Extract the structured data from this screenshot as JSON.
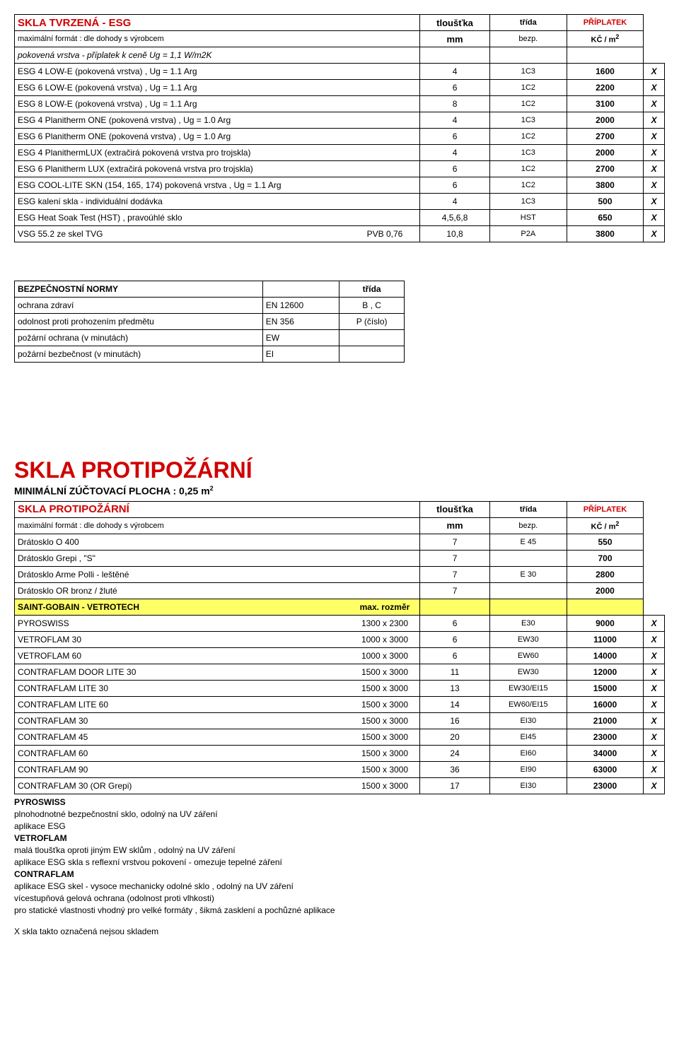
{
  "esg": {
    "title": "SKLA TVRZENÁ - ESG",
    "subtitle": "maximální formát :  dle dohody s výrobcem",
    "col_tl": "tloušťka",
    "col_mm": "mm",
    "col_trida": "třída",
    "col_bezp": "bezp.",
    "col_pripl": "PŘÍPLATEK",
    "col_kc": "KČ / m",
    "sup2": "2",
    "row_pokov": "pokovená vrstva - příplatek k ceně Ug = 1,1 W/m2K",
    "rows": [
      {
        "n": "ESG 4 LOW-E (pokovená vrstva) ,  Ug = 1.1 Arg",
        "mm": "4",
        "t": "1C3",
        "p": "1600",
        "x": "X"
      },
      {
        "n": "ESG 6 LOW-E (pokovená vrstva) ,  Ug = 1.1 Arg",
        "mm": "6",
        "t": "1C2",
        "p": "2200",
        "x": "X"
      },
      {
        "n": "ESG 8 LOW-E (pokovená vrstva) ,  Ug = 1.1 Arg",
        "mm": "8",
        "t": "1C2",
        "p": "3100",
        "x": "X"
      },
      {
        "n": "ESG 4 Planitherm ONE (pokovená vrstva) , Ug = 1.0 Arg",
        "mm": "4",
        "t": "1C3",
        "p": "2000",
        "x": "X"
      },
      {
        "n": "ESG 6 Planitherm ONE (pokovená vrstva) , Ug = 1.0 Arg",
        "mm": "6",
        "t": "1C2",
        "p": "2700",
        "x": "X"
      },
      {
        "n": "ESG 4 PlanithermLUX (extračirá pokovená vrstva pro trojskla)",
        "mm": "4",
        "t": "1C3",
        "p": "2000",
        "x": "X"
      },
      {
        "n": "ESG 6 Planitherm LUX (extračirá pokovená vrstva pro trojskla)",
        "mm": "6",
        "t": "1C2",
        "p": "2700",
        "x": "X"
      },
      {
        "n": "ESG COOL-LITE SKN (154, 165, 174) pokovená vrstva , Ug = 1.1 Arg",
        "mm": "6",
        "t": "1C2",
        "p": "3800",
        "x": "X"
      },
      {
        "n": "ESG kalení skla - individuální dodávka",
        "mm": "4",
        "t": "1C3",
        "p": "500",
        "x": "X"
      },
      {
        "n": "ESG Heat Soak Test (HST) , pravoúhlé sklo",
        "mm": "4,5,6,8",
        "t": "HST",
        "p": "650",
        "x": "X"
      },
      {
        "n": "VSG 55.2 ze skel TVG",
        "arg": "PVB 0,76",
        "mm": "10,8",
        "t": "P2A",
        "p": "3800",
        "x": "X"
      }
    ]
  },
  "norms": {
    "title": "BEZPEČNOSTNÍ NORMY",
    "col_trida": "třída",
    "rows": [
      {
        "n": "ochrana zdraví",
        "en": "EN 12600",
        "v": "B , C"
      },
      {
        "n": "odolnost proti prohozením předmětu",
        "en": "EN 356",
        "v": "P (číslo)"
      },
      {
        "n": "požární ochrana (v minutách)",
        "en": "EW",
        "v": ""
      },
      {
        "n": "požární bezbečnost (v minutách)",
        "en": "EI",
        "v": ""
      }
    ]
  },
  "fire": {
    "heading": "SKLA PROTIPOŽÁRNÍ",
    "sub": "MINIMÁLNÍ ZÚČTOVACÍ PLOCHA :  0,25 m",
    "sup2": "2",
    "title": "SKLA PROTIPOŽÁRNÍ",
    "subtitle": "maximální formát :  dle dohody s výrobcem",
    "col_tl": "tloušťka",
    "col_mm": "mm",
    "col_trida": "třída",
    "col_bezp": "bezp.",
    "col_pripl": "PŘÍPLATEK",
    "col_kc": "KČ / m",
    "drato": [
      {
        "n": "Drátosklo O 400",
        "mm": "7",
        "t": "E 45",
        "p": "550"
      },
      {
        "n": "Drátosklo Grepi , \"S\"",
        "mm": "7",
        "t": "",
        "p": "700"
      },
      {
        "n": "Drátosklo Arme Polli - leštěné",
        "mm": "7",
        "t": "E 30",
        "p": "2800"
      },
      {
        "n": "Drátosklo OR bronz / žluté",
        "mm": "7",
        "t": "",
        "p": "2000"
      }
    ],
    "saint": "SAINT-GOBAIN - VETROTECH",
    "maxroz": "max. rozměr",
    "rows": [
      {
        "n": "PYROSWISS",
        "d": "1300 x 2300",
        "mm": "6",
        "t": "E30",
        "p": "9000",
        "x": "X"
      },
      {
        "n": "VETROFLAM 30",
        "d": "1000 x 3000",
        "mm": "6",
        "t": "EW30",
        "p": "11000",
        "x": "X"
      },
      {
        "n": "VETROFLAM 60",
        "d": "1000 x 3000",
        "mm": "6",
        "t": "EW60",
        "p": "14000",
        "x": "X"
      },
      {
        "n": "CONTRAFLAM DOOR LITE 30",
        "d": "1500 x 3000",
        "mm": "11",
        "t": "EW30",
        "p": "12000",
        "x": "X"
      },
      {
        "n": "CONTRAFLAM LITE 30",
        "d": "1500 x 3000",
        "mm": "13",
        "t": "EW30/EI15",
        "p": "15000",
        "x": "X"
      },
      {
        "n": "CONTRAFLAM LITE 60",
        "d": "1500 x 3000",
        "mm": "14",
        "t": "EW60/EI15",
        "p": "16000",
        "x": "X"
      },
      {
        "n": "CONTRAFLAM 30",
        "d": "1500 x 3000",
        "mm": "16",
        "t": "EI30",
        "p": "21000",
        "x": "X"
      },
      {
        "n": "CONTRAFLAM 45",
        "d": "1500 x 3000",
        "mm": "20",
        "t": "EI45",
        "p": "23000",
        "x": "X"
      },
      {
        "n": "CONTRAFLAM 60",
        "d": "1500 x 3000",
        "mm": "24",
        "t": "EI60",
        "p": "34000",
        "x": "X"
      },
      {
        "n": "CONTRAFLAM 90",
        "d": "1500 x 3000",
        "mm": "36",
        "t": "EI90",
        "p": "63000",
        "x": "X"
      },
      {
        "n": "CONTRAFLAM 30 (OR Grepi)",
        "d": "1500 x 3000",
        "mm": "17",
        "t": "EI30",
        "p": "23000",
        "x": "X"
      }
    ]
  },
  "notes": {
    "l1": "PYROSWISS",
    "l2": "plnohodnotné bezpečnostní sklo, odolný na UV záření",
    "l3": "aplikace ESG",
    "l4": "VETROFLAM",
    "l5": "malá tloušťka oproti jiným EW sklům , odolný na UV záření",
    "l6": "aplikace ESG skla s reflexní vrstvou pokovení - omezuje tepelné záření",
    "l7": "CONTRAFLAM",
    "l8": "aplikace ESG skel - vysoce mechanicky odolné sklo , odolný na UV záření",
    "l9": "vícestupňová gelová ochrana (odolnost proti vlhkosti)",
    "l10": "pro statické vlastnosti vhodný pro velké formáty , šikmá zasklení a pochůzné aplikace",
    "l11": "X skla takto označená nejsou skladem"
  }
}
